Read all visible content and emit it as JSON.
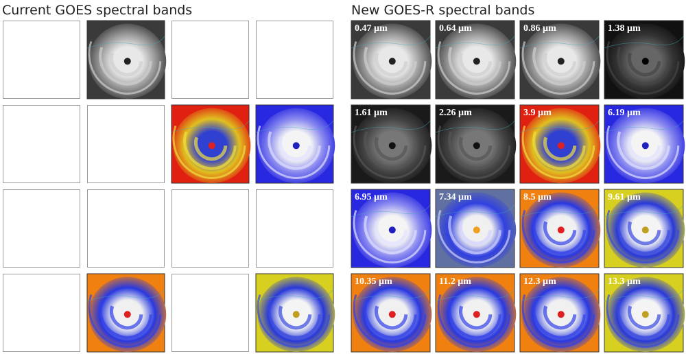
{
  "left": {
    "title": "Current GOES spectral bands"
  },
  "right": {
    "title": "New GOES-R spectral bands",
    "labels": [
      "0.47 µm",
      "0.64 µm",
      "0.86 µm",
      "1.38 µm",
      "1.61 µm",
      "2.26 µm",
      "3.9 µm",
      "6.19 µm",
      "6.95 µm",
      "7.34 µm",
      "8.5 µm",
      "9.61 µm",
      "10.35 µm",
      "11.2 µm",
      "12.3 µm",
      "13.3 µm"
    ]
  }
}
